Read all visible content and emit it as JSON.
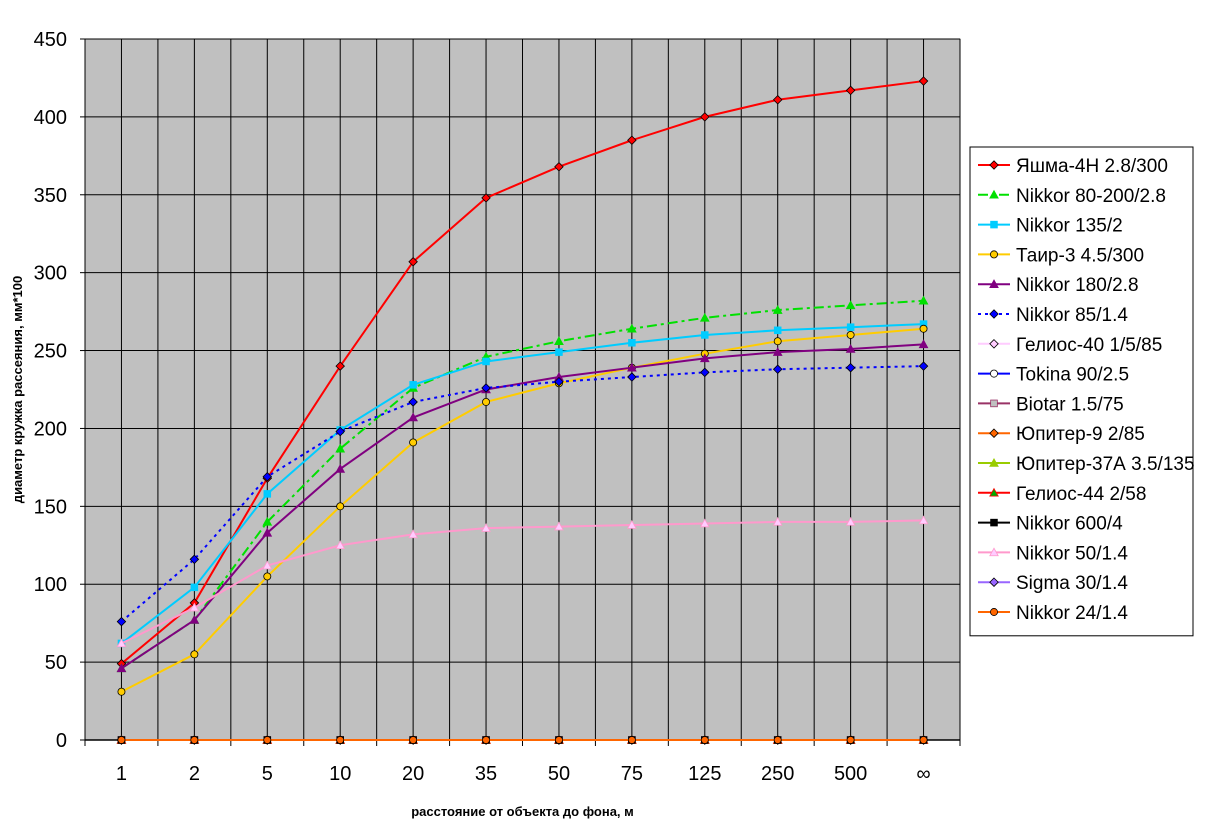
{
  "chart_data": {
    "type": "line",
    "title": "",
    "xlabel": "расстояние от объекта до фона, м",
    "ylabel": "диаметр кружка рассеяния, мм*100",
    "categories": [
      "1",
      "2",
      "5",
      "10",
      "20",
      "35",
      "50",
      "75",
      "125",
      "250",
      "500",
      "∞"
    ],
    "ylim": [
      0,
      450
    ],
    "yticks": [
      0,
      50,
      100,
      150,
      200,
      250,
      300,
      350,
      400,
      450
    ],
    "grid": true,
    "legend_position": "right",
    "plot_background": "#c0c0c0",
    "series": [
      {
        "name": "Яшма-4Н 2.8/300",
        "color": "#ff0000",
        "marker": "diamond",
        "marker_fill": "#ff0000",
        "dash": "solid",
        "values": [
          49,
          88,
          168,
          240,
          307,
          348,
          368,
          385,
          400,
          411,
          417,
          423
        ]
      },
      {
        "name": "Nikkor 80-200/2.8",
        "color": "#00e000",
        "marker": "triangle",
        "marker_fill": "#00e000",
        "dash": "dashdot",
        "values": [
          46,
          77,
          140,
          187,
          226,
          246,
          256,
          264,
          271,
          276,
          279,
          282
        ]
      },
      {
        "name": "Nikkor 135/2",
        "color": "#00ccff",
        "marker": "square",
        "marker_fill": "#00ccff",
        "dash": "solid",
        "values": [
          62,
          98,
          158,
          199,
          228,
          243,
          249,
          255,
          260,
          263,
          265,
          267
        ]
      },
      {
        "name": "Таир-3 4.5/300",
        "color": "#ffcc00",
        "marker": "circle",
        "marker_fill": "#ffcc00",
        "dash": "solid",
        "values": [
          31,
          55,
          105,
          150,
          191,
          217,
          229,
          239,
          248,
          256,
          260,
          264
        ]
      },
      {
        "name": "Nikkor 180/2.8",
        "color": "#800080",
        "marker": "triangle",
        "marker_fill": "#800080",
        "dash": "solid",
        "values": [
          46,
          77,
          133,
          174,
          207,
          225,
          233,
          239,
          245,
          249,
          251,
          254
        ]
      },
      {
        "name": "Nikkor 85/1.4",
        "color": "#0000ff",
        "marker": "diamond",
        "marker_fill": "#0000ff",
        "dash": "dotted",
        "values": [
          76,
          116,
          169,
          198,
          217,
          226,
          230,
          233,
          236,
          238,
          239,
          240
        ]
      },
      {
        "name": "Гелиос-40 1/5/85",
        "color": "#ffccff",
        "marker": "diamond",
        "marker_fill": "#ffccff",
        "dash": "solid",
        "values": [
          0,
          0,
          0,
          0,
          0,
          0,
          0,
          0,
          0,
          0,
          0,
          0
        ]
      },
      {
        "name": "Tokina 90/2.5",
        "color": "#0000ff",
        "marker": "circle",
        "marker_fill": "#ffffff",
        "dash": "solid",
        "values": [
          0,
          0,
          0,
          0,
          0,
          0,
          0,
          0,
          0,
          0,
          0,
          0
        ]
      },
      {
        "name": "Biotar 1.5/75",
        "color": "#993366",
        "marker": "square",
        "marker_fill": "#c0c0c0",
        "dash": "solid",
        "values": [
          0,
          0,
          0,
          0,
          0,
          0,
          0,
          0,
          0,
          0,
          0,
          0
        ]
      },
      {
        "name": "Юпитер-9 2/85",
        "color": "#ff6600",
        "marker": "diamond",
        "marker_fill": "#ff6600",
        "dash": "solid",
        "values": [
          0,
          0,
          0,
          0,
          0,
          0,
          0,
          0,
          0,
          0,
          0,
          0
        ]
      },
      {
        "name": "Юпитер-37А 3.5/135",
        "color": "#99cc00",
        "marker": "triangle",
        "marker_fill": "#99cc00",
        "dash": "solid",
        "values": [
          0,
          0,
          0,
          0,
          0,
          0,
          0,
          0,
          0,
          0,
          0,
          0
        ]
      },
      {
        "name": "Гелиос-44 2/58",
        "color": "#ff0000",
        "marker": "triangle",
        "marker_fill": "#00aa00",
        "dash": "solid",
        "values": [
          0,
          0,
          0,
          0,
          0,
          0,
          0,
          0,
          0,
          0,
          0,
          0
        ]
      },
      {
        "name": "Nikkor 600/4",
        "color": "#000000",
        "marker": "square",
        "marker_fill": "#000000",
        "dash": "solid",
        "values": [
          0,
          0,
          0,
          0,
          0,
          0,
          0,
          0,
          0,
          0,
          0,
          0
        ]
      },
      {
        "name": "Nikkor 50/1.4",
        "color": "#ff99cc",
        "marker": "triangle",
        "marker_fill": "#ffccff",
        "dash": "solid",
        "values": [
          62,
          85,
          112,
          125,
          132,
          136,
          137,
          138,
          139,
          140,
          140,
          141
        ]
      },
      {
        "name": "Sigma 30/1.4",
        "color": "#9966ff",
        "marker": "diamond",
        "marker_fill": "#9966ff",
        "dash": "solid",
        "values": [
          0,
          0,
          0,
          0,
          0,
          0,
          0,
          0,
          0,
          0,
          0,
          0
        ]
      },
      {
        "name": "Nikkor 24/1.4",
        "color": "#ff6600",
        "marker": "circle",
        "marker_fill": "#ff6600",
        "dash": "solid",
        "values": [
          0,
          0,
          0,
          0,
          0,
          0,
          0,
          0,
          0,
          0,
          0,
          0
        ]
      }
    ]
  }
}
